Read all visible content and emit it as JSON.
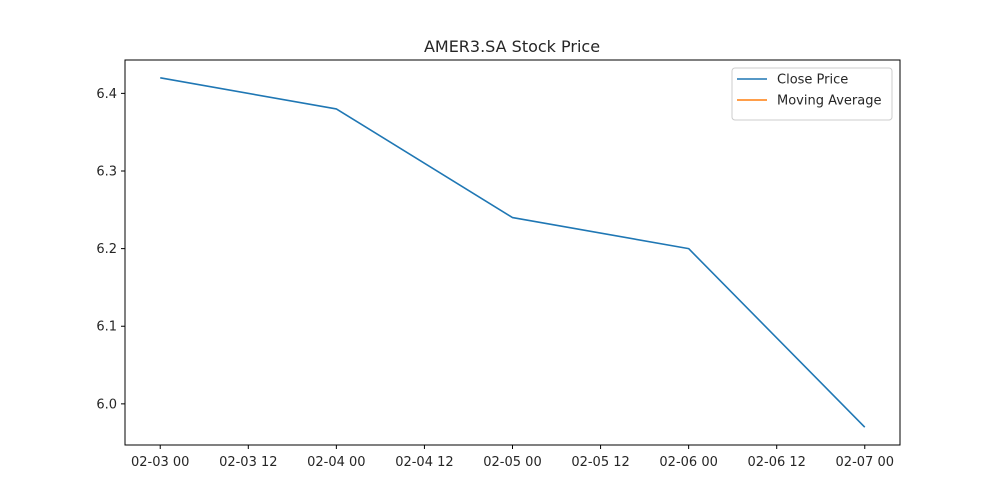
{
  "chart_data": {
    "type": "line",
    "title": "AMER3.SA Stock Price",
    "xlabel": "",
    "ylabel": "",
    "x": [
      "2025-02-03",
      "2025-02-04",
      "2025-02-05",
      "2025-02-06",
      "2025-02-07"
    ],
    "x_tick_labels": [
      "02-03 00",
      "02-03 12",
      "02-04 00",
      "02-04 12",
      "02-05 00",
      "02-05 12",
      "02-06 00",
      "02-06 12",
      "02-07 00"
    ],
    "xlim": [
      "2025-02-02 19:12",
      "2025-02-07 04:48"
    ],
    "y_ticks": [
      "6.0",
      "6.1",
      "6.2",
      "6.3",
      "6.4"
    ],
    "ylim": [
      5.947,
      6.443
    ],
    "grid": false,
    "legend": "top-right",
    "series": [
      {
        "name": "Close Price",
        "color": "#1f77b4",
        "values": [
          6.42,
          6.38,
          6.24,
          6.2,
          5.97
        ]
      },
      {
        "name": "Moving Average",
        "color": "#ff7f0e",
        "values": [
          null,
          null,
          null,
          null,
          null
        ]
      }
    ]
  }
}
